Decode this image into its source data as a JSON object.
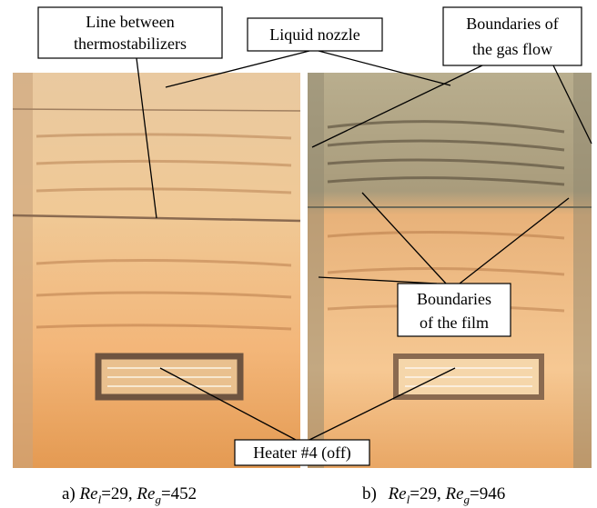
{
  "labels": [
    {
      "lines": [
        "Line between",
        "thermostabilizers"
      ]
    },
    {
      "lines": [
        "Liquid nozzle"
      ]
    },
    {
      "lines": [
        "Boundaries of",
        "the gas flow"
      ]
    },
    {
      "lines": [
        "Boundaries",
        "of the film"
      ]
    },
    {
      "lines": [
        "Heater #4 (off)"
      ]
    }
  ],
  "captions": [
    {
      "panel": "a)",
      "var1": "Re",
      "sub1": "l",
      "eq1": "=29,",
      "var2": "Re",
      "sub2": "g",
      "eq2": "=452"
    },
    {
      "panel": "b)",
      "var1": "Re",
      "sub1": "l",
      "eq1": "=29,",
      "var2": "Re",
      "sub2": "g",
      "eq2": "=946"
    }
  ]
}
